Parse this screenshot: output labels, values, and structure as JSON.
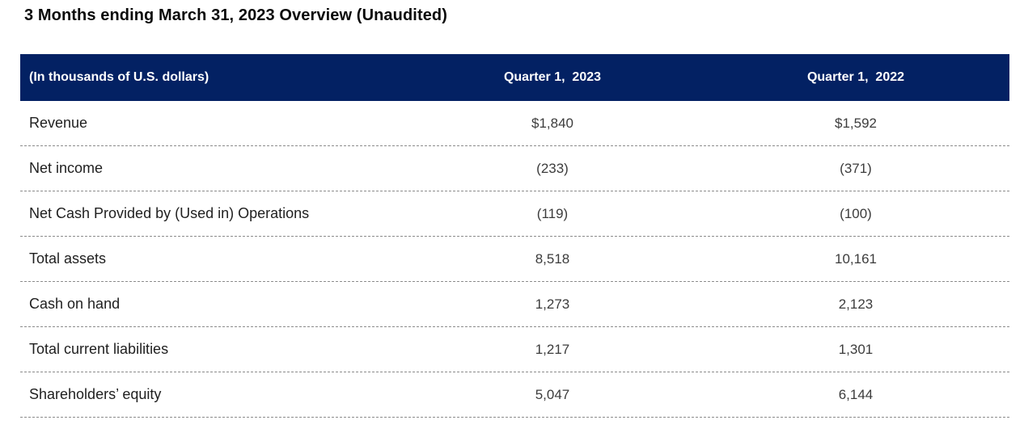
{
  "page": {
    "title": "3 Months ending March 31, 2023 Overview (Unaudited)"
  },
  "table": {
    "columns": [
      {
        "label": "(In thousands of U.S. dollars)"
      },
      {
        "label": "Quarter 1,  2023"
      },
      {
        "label": "Quarter 1,  2022"
      }
    ],
    "rows": [
      {
        "label": "Revenue",
        "q1_2023": "$1,840",
        "q1_2022": "$1,592"
      },
      {
        "label": "Net income",
        "q1_2023": "(233)",
        "q1_2022": "(371)"
      },
      {
        "label": "Net Cash Provided by (Used in) Operations",
        "q1_2023": "(119)",
        "q1_2022": "(100)"
      },
      {
        "label": "Total assets",
        "q1_2023": "8,518",
        "q1_2022": "10,161"
      },
      {
        "label": "Cash on hand",
        "q1_2023": "1,273",
        "q1_2022": "2,123"
      },
      {
        "label": "Total current liabilities",
        "q1_2023": "1,217",
        "q1_2022": "1,301"
      },
      {
        "label": "Shareholders’ equity",
        "q1_2023": "5,047",
        "q1_2022": "6,144"
      }
    ]
  },
  "colors": {
    "header_bg": "#032163",
    "header_text": "#FFFFFF",
    "label_text": "#1F1F1F",
    "value_text": "#3C3C3C",
    "divider": "#8C8C8C",
    "title_text": "#0A0A0A"
  }
}
